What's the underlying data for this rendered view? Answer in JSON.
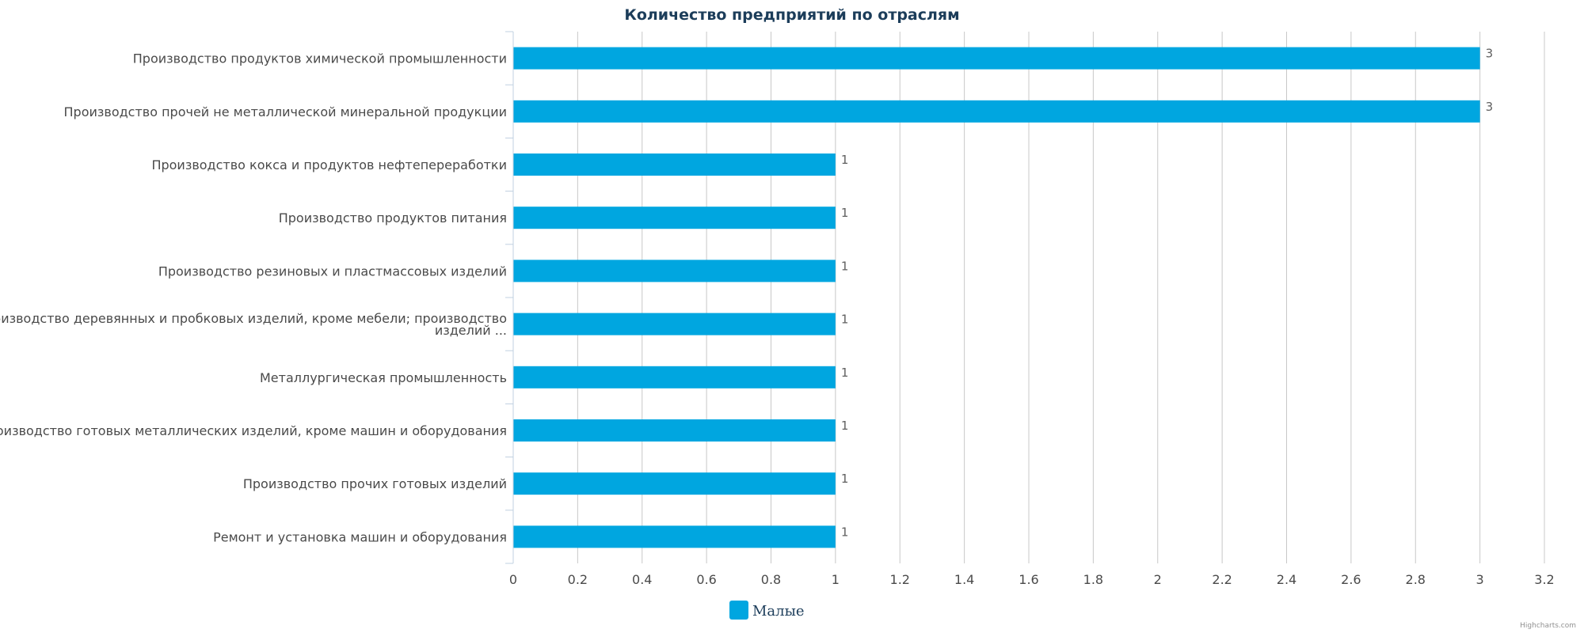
{
  "chart_data": {
    "type": "bar",
    "orientation": "horizontal",
    "title": "Количество предприятий по отраслям",
    "categories": [
      "Производство продуктов химической промышленности",
      "Производство прочей не металлической минеральной продукции",
      "Производство кокса и продуктов нефтепереработки",
      "Производство продуктов питания",
      "Производство резиновых и пластмассовых изделий",
      [
        "Производство деревянных и пробковых изделий, кроме мебели; производство",
        "изделий ..."
      ],
      "Металлургическая промышленность",
      "Производство готовых металлических изделий, кроме машин и оборудования",
      "Производство прочих готовых изделий",
      "Ремонт и установка машин и оборудования"
    ],
    "series": [
      {
        "name": "Малые",
        "color": "#00a6e0",
        "values": [
          3,
          3,
          1,
          1,
          1,
          1,
          1,
          1,
          1,
          1
        ]
      }
    ],
    "xlim": [
      0,
      3.2
    ],
    "xticks": [
      "0",
      "0.2",
      "0.4",
      "0.6",
      "0.8",
      "1",
      "1.2",
      "1.4",
      "1.6",
      "1.8",
      "2",
      "2.2",
      "2.4",
      "2.6",
      "2.8",
      "3",
      "3.2"
    ],
    "grid": true,
    "data_labels": true,
    "legend_position": "bottom-center"
  },
  "credits": "Highcharts.com"
}
